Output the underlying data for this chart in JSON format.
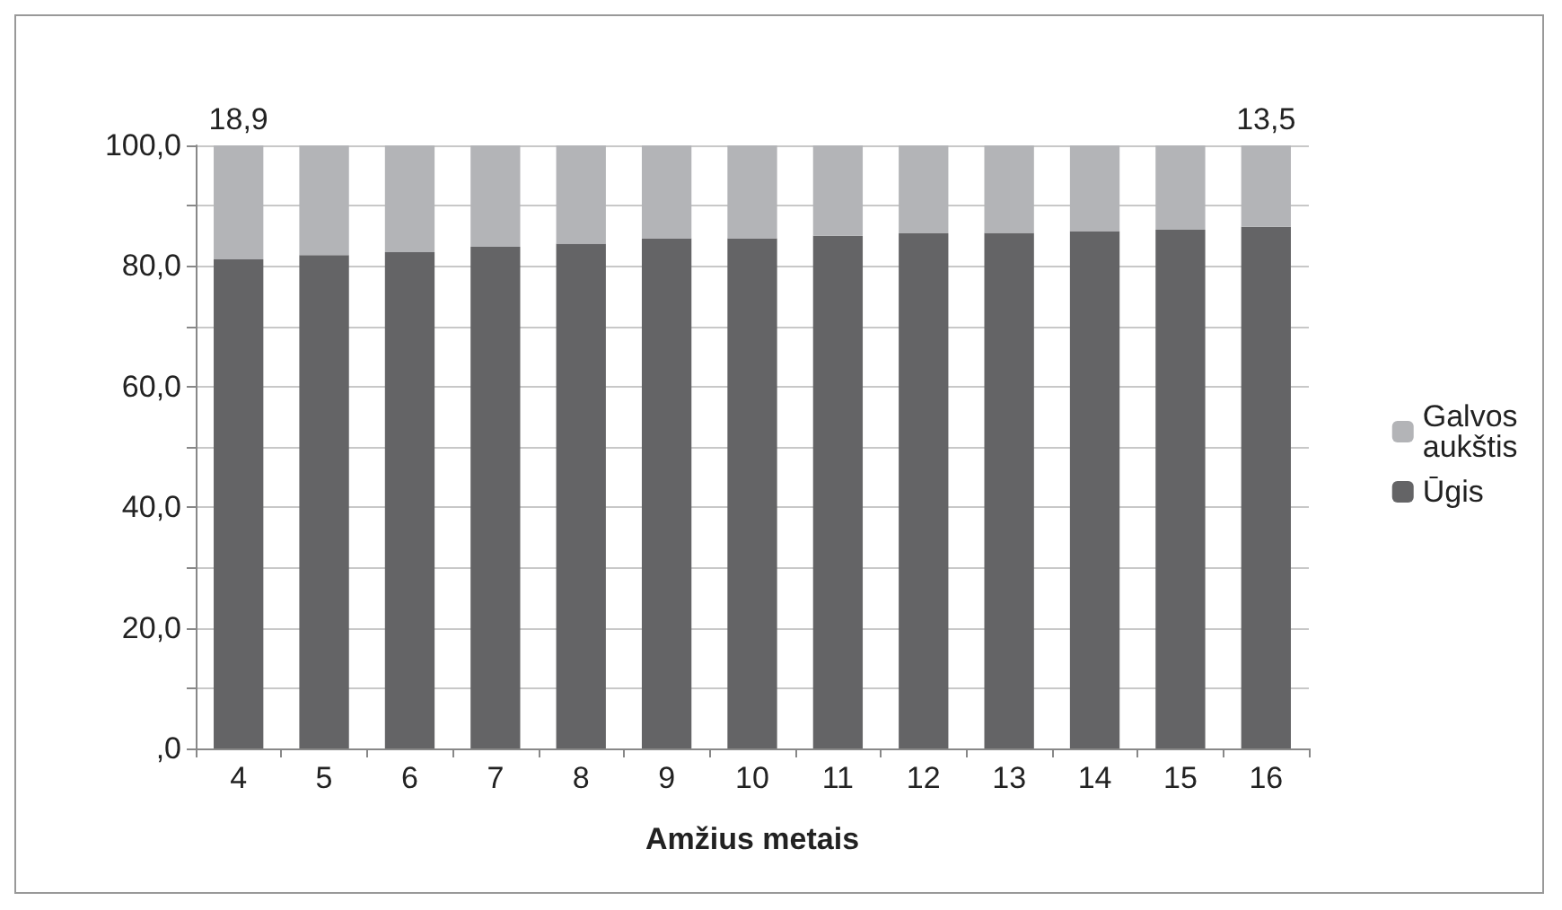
{
  "chart_data": {
    "type": "bar",
    "stacked": true,
    "xlabel": "Amžius metais",
    "categories": [
      "4",
      "5",
      "6",
      "7",
      "8",
      "9",
      "10",
      "11",
      "12",
      "13",
      "14",
      "15",
      "16"
    ],
    "series": [
      {
        "name": "Ūgis",
        "color": "#646466",
        "values": [
          81.1,
          81.8,
          82.3,
          83.2,
          83.7,
          84.6,
          84.6,
          85.0,
          85.4,
          85.5,
          85.8,
          86.0,
          86.5
        ]
      },
      {
        "name": "Galvos aukštis",
        "color": "#b3b4b7",
        "values": [
          18.9,
          18.2,
          17.7,
          16.8,
          16.3,
          15.4,
          15.4,
          15.0,
          14.6,
          14.5,
          14.2,
          14.0,
          13.5
        ],
        "value_labels": [
          "18,9",
          null,
          null,
          null,
          null,
          null,
          null,
          null,
          null,
          null,
          null,
          null,
          "13,5"
        ]
      }
    ],
    "ylim": [
      0,
      100
    ],
    "yticks": [
      {
        "value": 0,
        "label": ",0"
      },
      {
        "value": 10,
        "label": null
      },
      {
        "value": 20,
        "label": "20,0"
      },
      {
        "value": 30,
        "label": null
      },
      {
        "value": 40,
        "label": "40,0"
      },
      {
        "value": 50,
        "label": null
      },
      {
        "value": 60,
        "label": "60,0"
      },
      {
        "value": 70,
        "label": null
      },
      {
        "value": 80,
        "label": "80,0"
      },
      {
        "value": 90,
        "label": null
      },
      {
        "value": 100,
        "label": "100,0"
      }
    ],
    "grid": "y",
    "legend": "right"
  }
}
